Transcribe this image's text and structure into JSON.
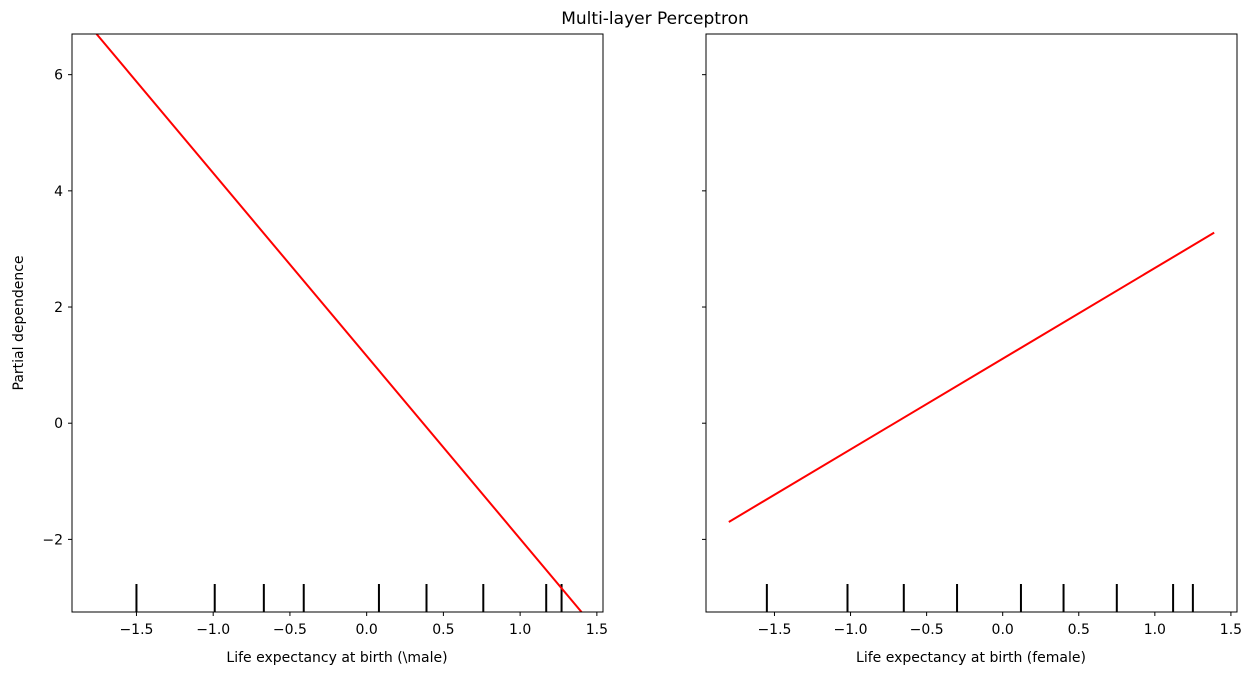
{
  "chart_data": {
    "type": "line",
    "title": "Multi-layer Perceptron",
    "line_color": "#ff0000",
    "rug_color": "#000000",
    "shared_y": true,
    "ylabel": "Partial dependence",
    "ylim": [
      -3.25,
      6.7
    ],
    "yticks": [
      -2,
      0,
      2,
      4,
      6
    ],
    "ytick_labels": [
      "−2",
      "0",
      "2",
      "4",
      "6"
    ],
    "panels": [
      {
        "xlabel": "Life expectancy at birth (\\male)",
        "xlim": [
          -1.92,
          1.54
        ],
        "xticks": [
          -1.5,
          -1.0,
          -0.5,
          0.0,
          0.5,
          1.0,
          1.5
        ],
        "xtick_labels": [
          "−1.5",
          "−1.0",
          "−0.5",
          "0.0",
          "0.5",
          "1.0",
          "1.5"
        ],
        "series": [
          {
            "x": [
              -1.76,
              1.4
            ],
            "y": [
              6.7,
              -3.25
            ]
          }
        ],
        "rug": [
          -1.5,
          -0.99,
          -0.67,
          -0.41,
          0.08,
          0.39,
          0.76,
          1.17,
          1.27
        ]
      },
      {
        "xlabel": "Life expectancy at birth (female)",
        "xlim": [
          -1.95,
          1.54
        ],
        "xticks": [
          -1.5,
          -1.0,
          -0.5,
          0.0,
          0.5,
          1.0,
          1.5
        ],
        "xtick_labels": [
          "−1.5",
          "−1.0",
          "−0.5",
          "0.0",
          "0.5",
          "1.0",
          "1.5"
        ],
        "series": [
          {
            "x": [
              -1.8,
              1.39
            ],
            "y": [
              -1.7,
              3.28
            ]
          }
        ],
        "rug": [
          -1.55,
          -1.02,
          -0.65,
          -0.3,
          0.12,
          0.4,
          0.75,
          1.12,
          1.25
        ]
      }
    ]
  }
}
